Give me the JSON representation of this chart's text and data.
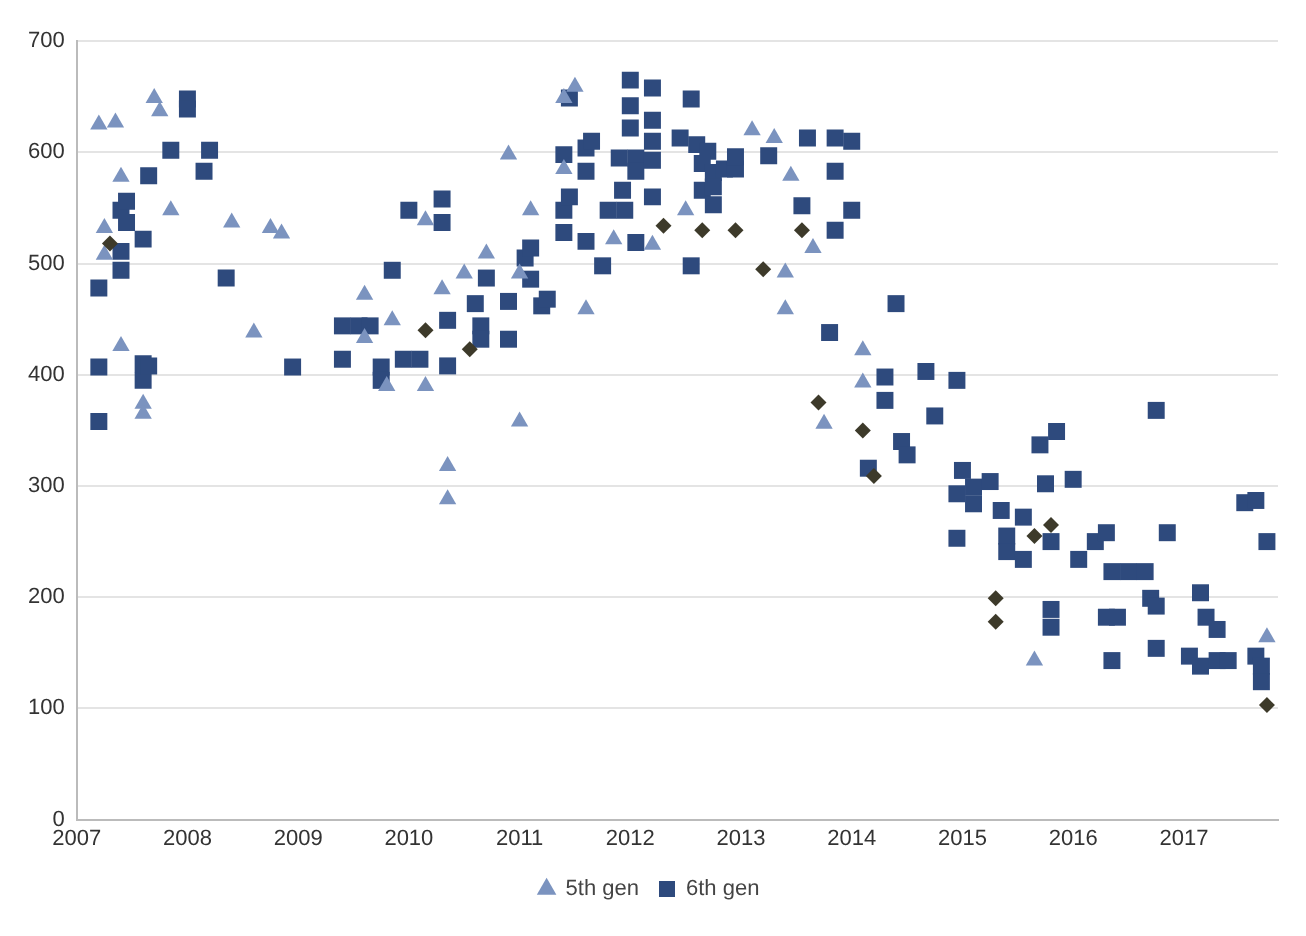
{
  "chart_data": {
    "type": "scatter",
    "xlim": [
      2007,
      2017.85
    ],
    "xticks": [
      2007,
      2008,
      2009,
      2010,
      2011,
      2012,
      2013,
      2014,
      2015,
      2016,
      2017
    ],
    "ylim": [
      0,
      700
    ],
    "yticks": [
      0,
      100,
      200,
      300,
      400,
      500,
      600,
      700
    ],
    "grid": "y",
    "legend": "bottom",
    "series": [
      {
        "name": "5th gen",
        "color": "#7b93bf",
        "marker": "triangle",
        "x": [
          2007.2,
          2007.35,
          2007.25,
          2007.25,
          2007.4,
          2007.4,
          2007.6,
          2007.6,
          2007.7,
          2007.75,
          2007.85,
          2008.4,
          2008.75,
          2008.85,
          2008.6,
          2009.6,
          2009.6,
          2009.85,
          2009.8,
          2010.15,
          2010.15,
          2010.3,
          2010.35,
          2010.35,
          2010.5,
          2010.7,
          2010.9,
          2011.0,
          2011.0,
          2011.1,
          2011.4,
          2011.5,
          2011.4,
          2011.6,
          2011.85,
          2012.2,
          2012.5,
          2013.1,
          2013.3,
          2013.45,
          2013.65,
          2013.4,
          2013.4,
          2014.1,
          2014.1,
          2013.75,
          2015.65,
          2017.75
        ],
        "values": [
          625,
          627,
          532,
          508,
          578,
          426,
          374,
          365,
          649,
          637,
          548,
          537,
          532,
          527,
          438,
          472,
          433,
          449,
          390,
          539,
          390,
          477,
          318,
          288,
          491,
          509,
          598,
          491,
          358,
          548,
          649,
          659,
          585,
          459,
          522,
          517,
          548,
          620,
          613,
          579,
          514,
          492,
          459,
          422,
          393,
          356,
          143,
          164
        ]
      },
      {
        "color": "#3d3a2a",
        "marker": "diamond",
        "x": [
          2007.3,
          2010.15,
          2010.55,
          2012.3,
          2012.65,
          2012.95,
          2013.2,
          2013.55,
          2013.7,
          2014.1,
          2014.2,
          2015.3,
          2015.3,
          2015.65,
          2015.8,
          2017.75
        ],
        "values": [
          518,
          440,
          423,
          534,
          530,
          530,
          495,
          530,
          375,
          350,
          309,
          199,
          178,
          255,
          265,
          103
        ]
      },
      {
        "name": "6th gen",
        "color": "#2e4a7d",
        "marker": "square",
        "x": [
          2007.2,
          2007.2,
          2007.2,
          2007.4,
          2007.4,
          2007.4,
          2007.45,
          2007.45,
          2007.6,
          2007.6,
          2007.6,
          2007.65,
          2007.65,
          2007.85,
          2008.0,
          2008.0,
          2008.15,
          2008.2,
          2008.35,
          2008.95,
          2009.4,
          2009.55,
          2009.4,
          2009.65,
          2009.75,
          2009.75,
          2009.85,
          2010.0,
          2009.95,
          2010.1,
          2010.3,
          2010.3,
          2010.35,
          2010.35,
          2010.7,
          2010.6,
          2010.65,
          2010.65,
          2010.9,
          2010.9,
          2011.05,
          2011.1,
          2011.1,
          2011.2,
          2011.25,
          2011.4,
          2011.4,
          2011.4,
          2011.45,
          2011.45,
          2011.6,
          2011.6,
          2011.65,
          2011.6,
          2011.75,
          2011.8,
          2011.95,
          2011.93,
          2011.9,
          2012.0,
          2012.0,
          2012.0,
          2012.05,
          2012.05,
          2012.05,
          2012.2,
          2012.2,
          2012.2,
          2012.2,
          2012.2,
          2012.55,
          2012.55,
          2012.45,
          2012.6,
          2012.7,
          2012.65,
          2012.75,
          2012.85,
          2012.65,
          2012.75,
          2012.75,
          2012.95,
          2012.95,
          2013.25,
          2013.6,
          2013.55,
          2013.85,
          2013.85,
          2014.0,
          2013.85,
          2014.0,
          2013.8,
          2014.4,
          2014.3,
          2014.3,
          2014.15,
          2014.67,
          2014.95,
          2014.75,
          2014.45,
          2014.5,
          2015.0,
          2015.1,
          2014.95,
          2015.1,
          2015.25,
          2014.95,
          2015.35,
          2015.55,
          2015.4,
          2015.4,
          2015.55,
          2015.8,
          2015.7,
          2015.85,
          2015.75,
          2016.0,
          2016.05,
          2016.2,
          2016.3,
          2016.85,
          2016.75,
          2016.35,
          2016.5,
          2016.65,
          2015.8,
          2015.8,
          2016.3,
          2016.4,
          2016.35,
          2016.7,
          2016.75,
          2016.75,
          2017.15,
          2017.2,
          2017.3,
          2017.05,
          2017.15,
          2017.3,
          2017.4,
          2017.55,
          2017.65,
          2017.75,
          2017.65,
          2017.7,
          2017.7
        ],
        "values": [
          478,
          407,
          358,
          511,
          494,
          548,
          556,
          537,
          522,
          410,
          395,
          408,
          579,
          602,
          648,
          639,
          583,
          602,
          487,
          407,
          444,
          444,
          414,
          444,
          407,
          395,
          494,
          548,
          414,
          414,
          558,
          537,
          449,
          408,
          487,
          464,
          444,
          432,
          432,
          466,
          505,
          514,
          486,
          462,
          468,
          598,
          548,
          528,
          560,
          649,
          520,
          604,
          610,
          583,
          498,
          548,
          548,
          566,
          595,
          665,
          642,
          622,
          595,
          583,
          519,
          658,
          629,
          610,
          593,
          560,
          648,
          498,
          613,
          607,
          601,
          590,
          582,
          585,
          566,
          569,
          553,
          585,
          596,
          597,
          613,
          552,
          583,
          613,
          610,
          530,
          548,
          438,
          464,
          398,
          377,
          316,
          403,
          395,
          363,
          340,
          328,
          314,
          299,
          293,
          284,
          304,
          253,
          278,
          272,
          255,
          241,
          234,
          250,
          337,
          349,
          302,
          306,
          234,
          250,
          258,
          258,
          368,
          223,
          223,
          223,
          189,
          173,
          182,
          182,
          143,
          199,
          192,
          154,
          204,
          182,
          171,
          147,
          138,
          143,
          143,
          285,
          287,
          250,
          147,
          138,
          124
        ]
      }
    ]
  }
}
